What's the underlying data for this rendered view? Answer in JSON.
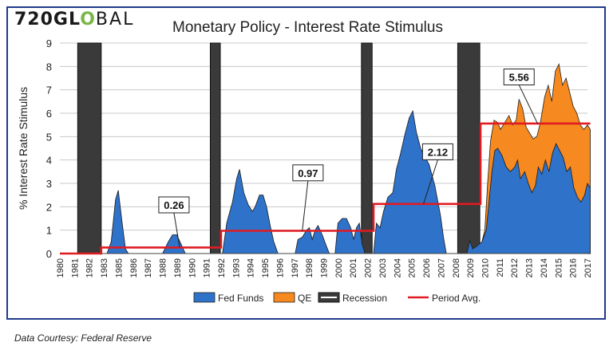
{
  "logo": {
    "prefix": "720GL",
    "mark": "O",
    "suffix": "BAL"
  },
  "footer": {
    "credit": "Data Courtesy: Federal Reserve"
  },
  "colors": {
    "fed_funds": "#2f72c9",
    "qe": "#f6891f",
    "recession": "#3a3a3a",
    "period_avg": "#e01b22",
    "frame": "#1f3b8a"
  },
  "chart_data": {
    "type": "area",
    "title": "Monetary Policy - Interest Rate Stimulus",
    "xlabel": "",
    "ylabel": "% Interest Rate Stimulus",
    "xlim": [
      1980,
      2017
    ],
    "ylim": [
      0,
      9
    ],
    "yticks": [
      0,
      1,
      2,
      3,
      4,
      5,
      6,
      7,
      8,
      9
    ],
    "xticks": [
      "1980",
      "1981",
      "1982",
      "1983",
      "1985",
      "1986",
      "1987",
      "1988",
      "1989",
      "1990",
      "1991",
      "1992",
      "1993",
      "1994",
      "1995",
      "1996",
      "1997",
      "1998",
      "1999",
      "2000",
      "2001",
      "2002",
      "2003",
      "2004",
      "2005",
      "2006",
      "2007",
      "2008",
      "2009",
      "2010",
      "2011",
      "2012",
      "2013",
      "2014",
      "2015",
      "2016",
      "2017"
    ],
    "grid": true,
    "legend_position": "bottom",
    "series": [
      {
        "name": "Fed Funds",
        "points": [
          [
            1980,
            0
          ],
          [
            1983.3,
            0
          ],
          [
            1983.6,
            0.5
          ],
          [
            1983.9,
            2.3
          ],
          [
            1984.1,
            2.7
          ],
          [
            1984.35,
            1.4
          ],
          [
            1984.6,
            0.2
          ],
          [
            1984.8,
            0
          ],
          [
            1987.2,
            0
          ],
          [
            1987.6,
            0.5
          ],
          [
            1987.9,
            0.8
          ],
          [
            1988.2,
            0.8
          ],
          [
            1988.5,
            0.4
          ],
          [
            1988.8,
            0
          ],
          [
            1991.4,
            0
          ],
          [
            1991.7,
            1.3
          ],
          [
            1992.1,
            2.2
          ],
          [
            1992.4,
            3.2
          ],
          [
            1992.6,
            3.6
          ],
          [
            1992.9,
            2.6
          ],
          [
            1993.2,
            2.1
          ],
          [
            1993.5,
            1.8
          ],
          [
            1993.7,
            2.0
          ],
          [
            1994.0,
            2.5
          ],
          [
            1994.25,
            2.5
          ],
          [
            1994.5,
            2.0
          ],
          [
            1994.75,
            1.2
          ],
          [
            1995.0,
            0.5
          ],
          [
            1995.3,
            0
          ],
          [
            1996.5,
            0
          ],
          [
            1996.7,
            0.6
          ],
          [
            1997.0,
            0.7
          ],
          [
            1997.3,
            1.0
          ],
          [
            1997.5,
            1.1
          ],
          [
            1997.7,
            0.6
          ],
          [
            1997.9,
            1.0
          ],
          [
            1998.1,
            1.2
          ],
          [
            1998.4,
            0.8
          ],
          [
            1998.7,
            0.3
          ],
          [
            1998.9,
            0
          ],
          [
            1999.3,
            0
          ],
          [
            1999.5,
            1.3
          ],
          [
            1999.8,
            1.5
          ],
          [
            2000.1,
            1.5
          ],
          [
            2000.4,
            1.1
          ],
          [
            2000.6,
            0.6
          ],
          [
            2000.8,
            1.1
          ],
          [
            2001.0,
            1.3
          ],
          [
            2001.2,
            0.4
          ],
          [
            2001.4,
            0
          ],
          [
            2002.0,
            0
          ],
          [
            2002.2,
            1.3
          ],
          [
            2002.45,
            1.1
          ],
          [
            2002.7,
            1.8
          ],
          [
            2003.0,
            2.4
          ],
          [
            2003.35,
            2.6
          ],
          [
            2003.6,
            3.6
          ],
          [
            2003.9,
            4.3
          ],
          [
            2004.2,
            5.1
          ],
          [
            2004.5,
            5.8
          ],
          [
            2004.75,
            6.1
          ],
          [
            2005.0,
            5.2
          ],
          [
            2005.3,
            4.5
          ],
          [
            2005.55,
            4.2
          ],
          [
            2005.9,
            3.8
          ],
          [
            2006.3,
            2.9
          ],
          [
            2006.7,
            1.6
          ],
          [
            2006.9,
            0.7
          ],
          [
            2007.1,
            0
          ],
          [
            2008.55,
            0
          ],
          [
            2008.75,
            0.55
          ],
          [
            2008.95,
            0.2
          ],
          [
            2009.2,
            0.3
          ],
          [
            2009.6,
            0.5
          ],
          [
            2009.9,
            1.0
          ],
          [
            2010.1,
            2.2
          ],
          [
            2010.3,
            3.5
          ],
          [
            2010.5,
            4.4
          ],
          [
            2010.7,
            4.5
          ],
          [
            2011.0,
            4.2
          ],
          [
            2011.3,
            3.7
          ],
          [
            2011.6,
            3.5
          ],
          [
            2011.9,
            3.7
          ],
          [
            2012.1,
            4.0
          ],
          [
            2012.3,
            3.2
          ],
          [
            2012.6,
            3.5
          ],
          [
            2012.85,
            3.0
          ],
          [
            2013.1,
            2.6
          ],
          [
            2013.35,
            2.9
          ],
          [
            2013.55,
            3.7
          ],
          [
            2013.8,
            3.4
          ],
          [
            2014.05,
            4.0
          ],
          [
            2014.3,
            3.5
          ],
          [
            2014.55,
            4.3
          ],
          [
            2014.8,
            4.7
          ],
          [
            2015.05,
            4.4
          ],
          [
            2015.3,
            4.1
          ],
          [
            2015.55,
            3.5
          ],
          [
            2015.8,
            3.7
          ],
          [
            2016.05,
            2.8
          ],
          [
            2016.3,
            2.4
          ],
          [
            2016.55,
            2.2
          ],
          [
            2016.8,
            2.5
          ],
          [
            2017.0,
            3.0
          ],
          [
            2017.2,
            2.8
          ]
        ]
      },
      {
        "name": "QE",
        "points": [
          [
            2009.6,
            0.5
          ],
          [
            2009.8,
            1.0
          ],
          [
            2010.0,
            3.0
          ],
          [
            2010.2,
            4.8
          ],
          [
            2010.45,
            5.7
          ],
          [
            2010.7,
            5.6
          ],
          [
            2010.9,
            5.3
          ],
          [
            2011.2,
            5.6
          ],
          [
            2011.5,
            5.9
          ],
          [
            2011.75,
            5.5
          ],
          [
            2012.0,
            5.7
          ],
          [
            2012.2,
            6.6
          ],
          [
            2012.45,
            6.2
          ],
          [
            2012.7,
            5.4
          ],
          [
            2013.0,
            5.1
          ],
          [
            2013.2,
            4.9
          ],
          [
            2013.45,
            5.0
          ],
          [
            2013.7,
            5.6
          ],
          [
            2014.0,
            6.7
          ],
          [
            2014.25,
            7.2
          ],
          [
            2014.5,
            6.5
          ],
          [
            2014.75,
            7.8
          ],
          [
            2015.0,
            8.1
          ],
          [
            2015.25,
            7.2
          ],
          [
            2015.5,
            7.5
          ],
          [
            2015.75,
            6.9
          ],
          [
            2016.0,
            6.3
          ],
          [
            2016.25,
            6.0
          ],
          [
            2016.5,
            5.5
          ],
          [
            2016.75,
            5.3
          ],
          [
            2017.0,
            5.5
          ],
          [
            2017.2,
            5.3
          ]
        ]
      }
    ],
    "recessions": [
      [
        1981.25,
        1982.9
      ],
      [
        1990.55,
        1991.25
      ],
      [
        2001.15,
        2001.9
      ],
      [
        2007.9,
        2009.45
      ]
    ],
    "period_avg": {
      "name": "Period Avg.",
      "steps": [
        [
          1980,
          0
        ],
        [
          1982.9,
          0
        ],
        [
          1982.9,
          0.26
        ],
        [
          1991.3,
          0.26
        ],
        [
          1991.3,
          0.97
        ],
        [
          2002.0,
          0.97
        ],
        [
          2002.0,
          2.12
        ],
        [
          2009.5,
          2.12
        ],
        [
          2009.5,
          5.56
        ],
        [
          2017.2,
          5.56
        ]
      ]
    },
    "annotations": [
      {
        "text": "0.26",
        "at": [
          1988.4,
          0.26
        ],
        "box": [
          1988.0,
          2.08
        ]
      },
      {
        "text": "0.97",
        "at": [
          1997.0,
          0.97
        ],
        "box": [
          1997.4,
          3.45
        ]
      },
      {
        "text": "2.12",
        "at": [
          2005.5,
          2.12
        ],
        "box": [
          2006.5,
          4.35
        ]
      },
      {
        "text": "5.56",
        "at": [
          2013.5,
          5.56
        ],
        "box": [
          2012.2,
          7.55
        ]
      }
    ],
    "legend": [
      {
        "name": "Fed Funds",
        "kind": "fill",
        "color": "#2f72c9"
      },
      {
        "name": "QE",
        "kind": "fill",
        "color": "#f6891f"
      },
      {
        "name": "Recession",
        "kind": "recession",
        "color": "#3a3a3a"
      },
      {
        "name": "Period Avg.",
        "kind": "line",
        "color": "#e01b22"
      }
    ]
  }
}
